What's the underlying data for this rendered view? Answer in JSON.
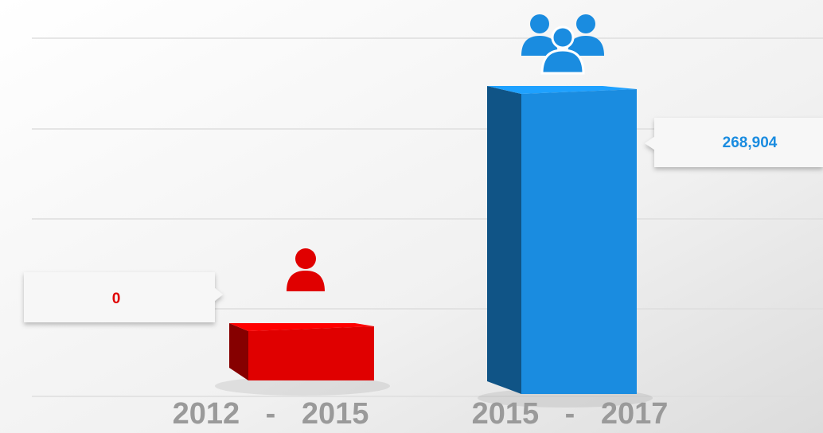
{
  "chart_data": {
    "type": "bar",
    "categories": [
      "2012 - 2015",
      "2015 - 2017"
    ],
    "values": [
      0,
      268904
    ],
    "value_labels": [
      "0",
      "268,904"
    ],
    "colors": [
      "#e00000",
      "#1a8ce0"
    ]
  }
}
